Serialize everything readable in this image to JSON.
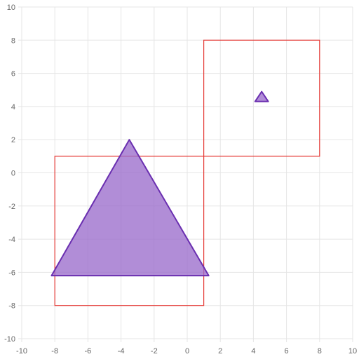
{
  "chart_data": {
    "type": "scatter",
    "title": "",
    "xlabel": "",
    "ylabel": "",
    "xlim": [
      -10,
      10
    ],
    "ylim": [
      -10,
      10
    ],
    "x_ticks": [
      -10,
      -8,
      -6,
      -4,
      -2,
      0,
      2,
      4,
      6,
      8,
      10
    ],
    "y_ticks": [
      -10,
      -8,
      -6,
      -4,
      -2,
      0,
      2,
      4,
      6,
      8,
      10
    ],
    "grid": true,
    "legend": "none",
    "colors": {
      "grid": "#e5e5e5",
      "tick_text": "#666666",
      "rect_stroke": "#e53935",
      "triangle_stroke": "#6a2fb0",
      "triangle_fill": "#9b6dcc"
    },
    "rectangles": [
      {
        "x_min": -8,
        "x_max": 1,
        "y_min": -8,
        "y_max": 1
      },
      {
        "x_min": 1,
        "x_max": 8,
        "y_min": 1,
        "y_max": 8
      }
    ],
    "triangles": [
      {
        "points": [
          [
            -3.5,
            2
          ],
          [
            -8.2,
            -6.2
          ],
          [
            1.3,
            -6.2
          ]
        ]
      },
      {
        "points": [
          [
            4.5,
            4.9
          ],
          [
            4.1,
            4.3
          ],
          [
            4.9,
            4.3
          ]
        ]
      }
    ]
  }
}
